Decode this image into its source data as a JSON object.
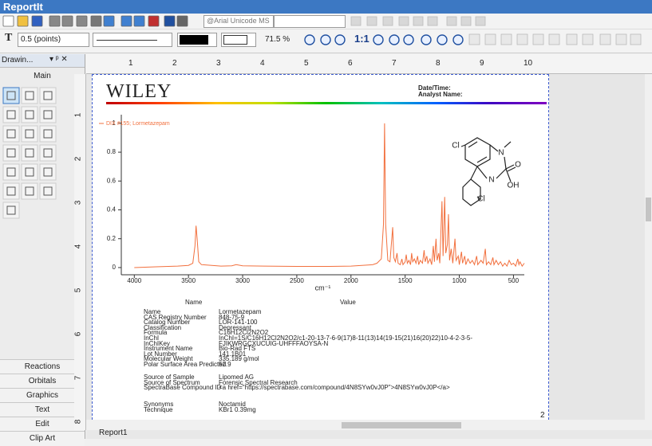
{
  "app": {
    "title": "ReportIt"
  },
  "toolbar": {
    "font": "@Arial Unicode MS",
    "line_width": "0.5 (points)",
    "zoom": "71.5 %",
    "text_tool": "T",
    "actual_size": "1:1"
  },
  "side_panel": {
    "title": "Drawin...",
    "section": "Main",
    "tabs": [
      "Reactions",
      "Orbitals",
      "Graphics",
      "Text",
      "Edit",
      "Clip Art"
    ]
  },
  "rulers": {
    "horizontal": [
      1,
      2,
      3,
      4,
      5,
      6,
      7,
      8,
      9,
      10
    ],
    "vertical": [
      1,
      2,
      3,
      4,
      5,
      6,
      7,
      8
    ]
  },
  "report": {
    "logo": "WILEY",
    "date_label": "Date/Time:",
    "analyst_label": "Analyst Name:",
    "page_number": 2,
    "structure_labels": [
      "Cl",
      "N",
      "O",
      "N",
      "OH",
      "Cl"
    ],
    "table": {
      "headers": [
        "Name",
        "Value"
      ],
      "groups": [
        [
          [
            "Name",
            "Lormetazepam"
          ],
          [
            "CAS Registry Number",
            "848-75-9"
          ],
          [
            "Catalog Number",
            "LOR-141-100"
          ],
          [
            "Classification",
            "Depressant"
          ],
          [
            "Formula",
            "C16H12Cl2N2O2"
          ],
          [
            "InChI",
            "InChI=1S/C16H12Cl2N2O2/c1-20-13-7-6-9(17)8-11(13)14(19-15(21)16(20)22)10-4-2-3-5-"
          ],
          [
            "InChIKey",
            "FJIKWRGCXUCUIG-UHFFFAOYSA-N"
          ],
          [
            "Instrument Name",
            "Bio-Rad FTS"
          ],
          [
            "Lot Number",
            "141.1B01"
          ],
          [
            "Molecular Weight",
            "335.189 g/mol"
          ],
          [
            "Polar Surface Area Predicted",
            "52.9"
          ]
        ],
        [
          [
            "Source of Sample",
            "Lipomed AG"
          ],
          [
            "Source of Spectrum",
            "Forensic Spectral Research"
          ],
          [
            "SpectraBase Compound ID",
            "<a href=\"https://spectrabase.com/compound/4N8SYw0vJ0P\">4N8SYw0vJ0P</a>"
          ]
        ],
        [
          [
            "Synonyms",
            "Noctamid"
          ],
          [
            "Technique",
            "KBr1 0.39mg"
          ]
        ]
      ]
    }
  },
  "chart_data": {
    "type": "line",
    "xlabel": "cm⁻¹",
    "x": [
      4000,
      3800,
      3600,
      3500,
      3460,
      3440,
      3430,
      3420,
      3405,
      3380,
      3200,
      3100,
      3060,
      3000,
      2800,
      2500,
      2200,
      2000,
      1900,
      1800,
      1760,
      1720,
      1700,
      1690,
      1680,
      1660,
      1640,
      1615,
      1605,
      1590,
      1575,
      1565,
      1545,
      1530,
      1520,
      1500,
      1490,
      1480,
      1465,
      1450,
      1440,
      1430,
      1415,
      1400,
      1385,
      1375,
      1360,
      1340,
      1325,
      1315,
      1300,
      1290,
      1270,
      1255,
      1240,
      1230,
      1215,
      1205,
      1190,
      1180,
      1160,
      1150,
      1135,
      1125,
      1110,
      1100,
      1090,
      1075,
      1060,
      1040,
      1030,
      1010,
      1000,
      980,
      970,
      950,
      940,
      920,
      900,
      880,
      860,
      840,
      830,
      800,
      780,
      760,
      750,
      730,
      710,
      690,
      680,
      660,
      640,
      620,
      600,
      580,
      560,
      540,
      520,
      500,
      480,
      460,
      450,
      440,
      420,
      400
    ],
    "series": [
      {
        "name": "DIX #155; Lormetazepam",
        "color": "#f2703e",
        "values": [
          0.0,
          0.005,
          0.01,
          0.015,
          0.03,
          0.15,
          0.29,
          0.2,
          0.04,
          0.02,
          0.01,
          0.012,
          0.02,
          0.012,
          0.01,
          0.008,
          0.008,
          0.01,
          0.015,
          0.02,
          0.03,
          0.06,
          0.3,
          1.0,
          0.3,
          0.05,
          0.04,
          0.28,
          0.07,
          0.04,
          0.1,
          0.03,
          0.02,
          0.06,
          0.02,
          0.04,
          0.09,
          0.03,
          0.05,
          0.02,
          0.1,
          0.04,
          0.06,
          0.03,
          0.08,
          0.02,
          0.05,
          0.03,
          0.12,
          0.04,
          0.08,
          0.03,
          0.06,
          0.02,
          0.15,
          0.04,
          0.2,
          0.05,
          0.1,
          0.03,
          0.46,
          0.08,
          0.49,
          0.1,
          0.16,
          0.37,
          0.05,
          0.13,
          0.03,
          0.2,
          0.05,
          0.08,
          0.02,
          0.11,
          0.03,
          0.08,
          0.02,
          0.06,
          0.03,
          0.05,
          0.02,
          0.08,
          0.02,
          0.05,
          0.03,
          0.13,
          0.02,
          0.04,
          0.02,
          0.07,
          0.02,
          0.05,
          0.02,
          0.04,
          0.01,
          0.03,
          0.01,
          0.05,
          0.02,
          0.03,
          0.01,
          0.06,
          0.02,
          0.04,
          0.01,
          0.03
        ]
      }
    ],
    "xlim": [
      4120,
      400
    ],
    "ylim": [
      -0.05,
      1.06
    ],
    "xticks": [
      4000,
      3500,
      3000,
      2500,
      2000,
      1500,
      1000,
      500
    ],
    "yticks": [
      0,
      0.2,
      0.4,
      0.6,
      0.8,
      1
    ]
  },
  "tabs": {
    "document": "Report1"
  }
}
